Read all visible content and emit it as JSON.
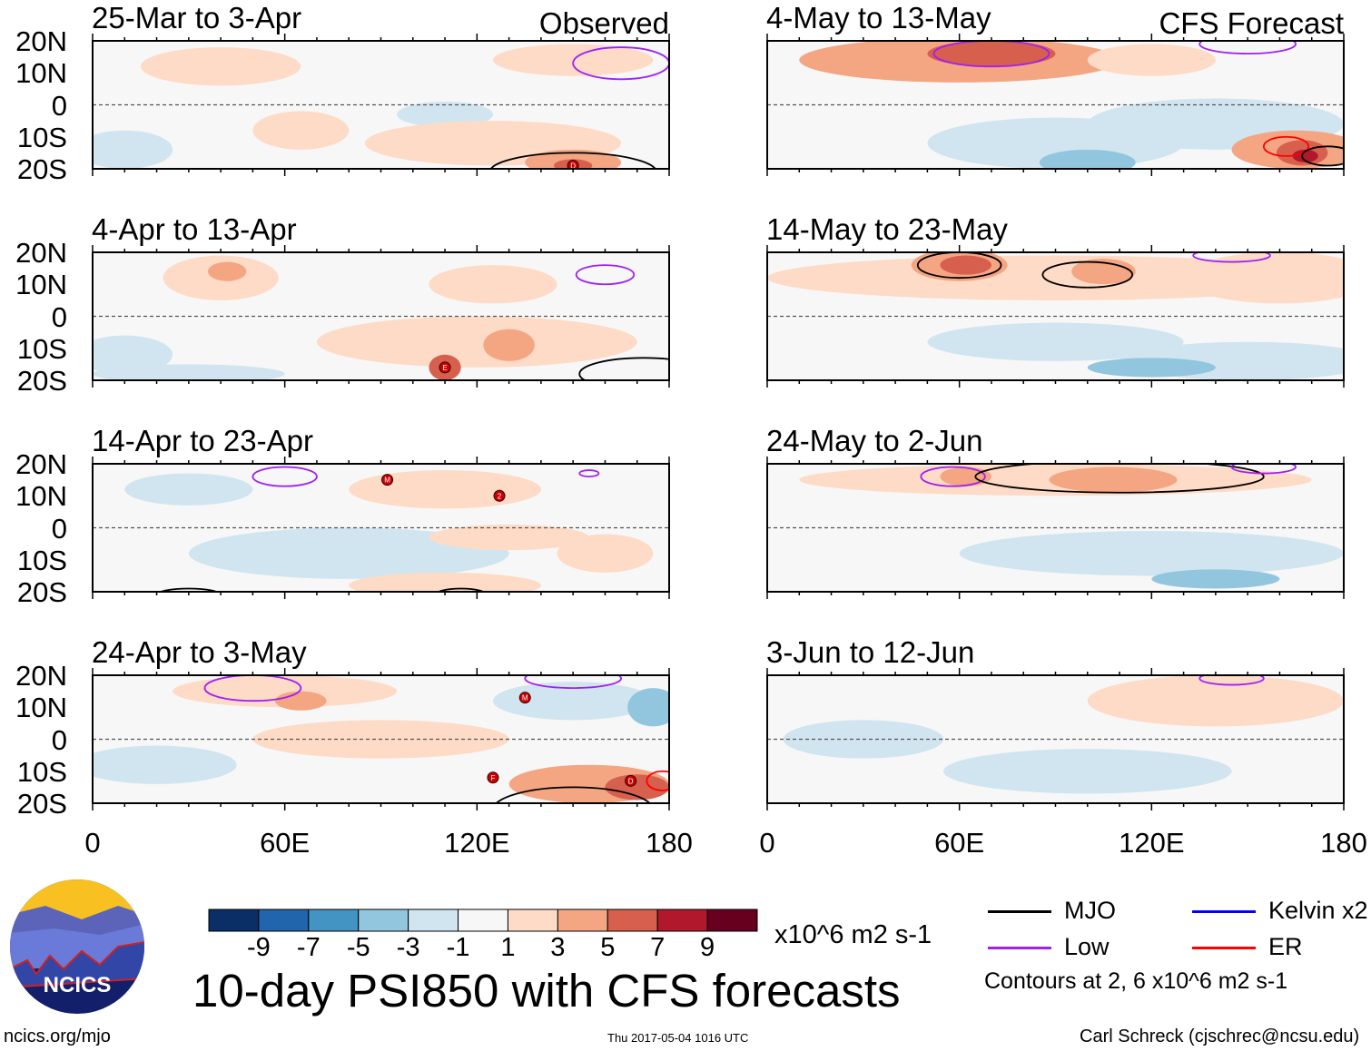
{
  "chart_data": {
    "type": "heatmap",
    "title": "10-day PSI850 with CFS forecasts",
    "units": "x10^6 m2 s-1",
    "column_labels": [
      "Observed",
      "CFS Forecast"
    ],
    "ylim": [
      -20,
      20
    ],
    "xlim": [
      0,
      180
    ],
    "y_ticks": [
      "20N",
      "10N",
      "0",
      "10S",
      "20S"
    ],
    "x_ticks": [
      "0",
      "60E",
      "120E",
      "180"
    ],
    "colorbar": {
      "ticks": [
        "-9",
        "-7",
        "-5",
        "-3",
        "-1",
        "1",
        "3",
        "5",
        "7",
        "9"
      ],
      "colors": [
        "#0a2f66",
        "#2166ac",
        "#4393c3",
        "#92c5de",
        "#d1e5f0",
        "#f7f7f7",
        "#fddbc7",
        "#f4a582",
        "#d6604d",
        "#b2182b",
        "#67001f"
      ]
    },
    "contour_note": "Contours at 2, 6 x10^6 m2 s-1",
    "legend": [
      {
        "label": "MJO",
        "color": "#000000"
      },
      {
        "label": "Kelvin x2",
        "color": "#0000ff"
      },
      {
        "label": "Low",
        "color": "#a020f0"
      },
      {
        "label": "ER",
        "color": "#ff0000"
      }
    ],
    "panels": [
      {
        "title": "25-Mar to 3-Apr",
        "tag": "Observed",
        "anomalies": [
          [
            150,
            14,
            25,
            5,
            2
          ],
          [
            40,
            12,
            25,
            6,
            2
          ],
          [
            110,
            -3,
            15,
            4,
            -2
          ],
          [
            10,
            -14,
            15,
            6,
            -2
          ],
          [
            125,
            -12,
            40,
            7,
            2
          ],
          [
            150,
            -18,
            15,
            4,
            4
          ],
          [
            150,
            -19,
            6,
            2,
            6
          ],
          [
            65,
            -8,
            15,
            6,
            2
          ]
        ],
        "contours": [
          [
            150,
            -21,
            26,
            6,
            "MJO"
          ],
          [
            165,
            13,
            15,
            5,
            "Low"
          ]
        ],
        "storms": [
          [
            150,
            -19,
            "D"
          ]
        ]
      },
      {
        "title": "4-Apr to 13-Apr",
        "tag": "",
        "anomalies": [
          [
            40,
            12,
            18,
            7,
            2
          ],
          [
            42,
            14,
            6,
            3,
            4
          ],
          [
            125,
            10,
            20,
            6,
            2
          ],
          [
            120,
            -8,
            50,
            8,
            2
          ],
          [
            110,
            -16,
            5,
            4,
            6
          ],
          [
            130,
            -9,
            8,
            5,
            4
          ],
          [
            10,
            -12,
            15,
            6,
            -2
          ],
          [
            30,
            -18,
            30,
            3,
            -2
          ]
        ],
        "contours": [
          [
            160,
            13,
            9,
            3,
            "Low"
          ],
          [
            172,
            -18,
            20,
            5,
            "MJO"
          ]
        ],
        "storms": [
          [
            110,
            -16,
            "E"
          ]
        ]
      },
      {
        "title": "14-Apr to 23-Apr",
        "tag": "",
        "anomalies": [
          [
            30,
            12,
            20,
            5,
            -2
          ],
          [
            80,
            -8,
            50,
            8,
            -2
          ],
          [
            110,
            12,
            30,
            6,
            2
          ],
          [
            130,
            -3,
            25,
            4,
            2
          ],
          [
            160,
            -8,
            15,
            6,
            2
          ],
          [
            110,
            -18,
            30,
            4,
            2
          ]
        ],
        "contours": [
          [
            60,
            16,
            10,
            3,
            "Low"
          ],
          [
            155,
            17,
            3,
            1,
            "Low"
          ],
          [
            30,
            -21,
            10,
            2,
            "MJO"
          ],
          [
            115,
            -21,
            8,
            2,
            "MJO"
          ]
        ],
        "storms": [
          [
            92,
            15,
            "M"
          ],
          [
            127,
            10,
            "2"
          ]
        ]
      },
      {
        "title": "24-Apr to 3-May",
        "tag": "",
        "anomalies": [
          [
            60,
            15,
            35,
            5,
            2
          ],
          [
            65,
            12,
            8,
            3,
            4
          ],
          [
            150,
            12,
            25,
            6,
            -2
          ],
          [
            175,
            10,
            8,
            6,
            -4
          ],
          [
            90,
            0,
            40,
            6,
            2
          ],
          [
            155,
            -14,
            25,
            6,
            4
          ],
          [
            170,
            -15,
            10,
            4,
            6
          ],
          [
            20,
            -8,
            25,
            6,
            -2
          ]
        ],
        "contours": [
          [
            50,
            16,
            15,
            4,
            "Low"
          ],
          [
            150,
            19,
            15,
            3,
            "Low"
          ],
          [
            150,
            -22,
            25,
            7,
            "MJO"
          ],
          [
            178,
            -13,
            5,
            3,
            "ER"
          ]
        ],
        "storms": [
          [
            135,
            13,
            "M"
          ],
          [
            125,
            -12,
            "F"
          ],
          [
            168,
            -13,
            "D"
          ]
        ]
      },
      {
        "title": "4-May to 13-May",
        "tag": "CFS Forecast",
        "anomalies": [
          [
            60,
            14,
            50,
            7,
            4
          ],
          [
            70,
            16,
            20,
            4,
            6
          ],
          [
            120,
            14,
            20,
            5,
            2
          ],
          [
            140,
            -6,
            40,
            8,
            -2
          ],
          [
            90,
            -12,
            40,
            8,
            -3
          ],
          [
            100,
            -18,
            15,
            4,
            -5
          ],
          [
            165,
            -14,
            20,
            6,
            4
          ],
          [
            167,
            -15,
            8,
            4,
            6
          ],
          [
            168,
            -16,
            4,
            2,
            8
          ]
        ],
        "contours": [
          [
            70,
            16,
            18,
            4,
            "Low"
          ],
          [
            150,
            19,
            15,
            3,
            "Low"
          ],
          [
            162,
            -13,
            7,
            3,
            "ER"
          ],
          [
            175,
            -16,
            8,
            3,
            "MJO"
          ]
        ],
        "storms": []
      },
      {
        "title": "14-May to 23-May",
        "tag": "",
        "anomalies": [
          [
            90,
            12,
            90,
            7,
            2
          ],
          [
            60,
            16,
            15,
            5,
            4
          ],
          [
            62,
            16,
            8,
            3,
            6
          ],
          [
            105,
            14,
            10,
            4,
            4
          ],
          [
            160,
            12,
            30,
            8,
            2
          ],
          [
            90,
            -8,
            40,
            6,
            -2
          ],
          [
            150,
            -14,
            40,
            6,
            -2
          ],
          [
            120,
            -16,
            20,
            3,
            -4
          ]
        ],
        "contours": [
          [
            60,
            16,
            13,
            4,
            "MJO"
          ],
          [
            100,
            13,
            14,
            4,
            "MJO"
          ],
          [
            145,
            19,
            12,
            2,
            "Low"
          ]
        ],
        "storms": []
      },
      {
        "title": "24-May to 2-Jun",
        "tag": "",
        "anomalies": [
          [
            90,
            15,
            80,
            5,
            2
          ],
          [
            62,
            16,
            8,
            3,
            4
          ],
          [
            108,
            15,
            20,
            4,
            4
          ],
          [
            120,
            -8,
            60,
            7,
            -2
          ],
          [
            140,
            -16,
            20,
            3,
            -4
          ]
        ],
        "contours": [
          [
            58,
            16,
            10,
            3,
            "Low"
          ],
          [
            110,
            16,
            45,
            5,
            "MJO"
          ],
          [
            155,
            19,
            10,
            2,
            "Low"
          ]
        ],
        "storms": []
      },
      {
        "title": "3-Jun to 12-Jun",
        "tag": "",
        "anomalies": [
          [
            140,
            12,
            40,
            8,
            2
          ],
          [
            100,
            -10,
            45,
            7,
            -2
          ],
          [
            30,
            0,
            25,
            6,
            -2
          ]
        ],
        "contours": [
          [
            145,
            19,
            10,
            2,
            "Low"
          ]
        ],
        "storms": []
      }
    ]
  },
  "footer": {
    "logo_text": "NCICS",
    "url": "ncics.org/mjo",
    "timestamp": "Thu 2017-05-04 1016 UTC",
    "author": "Carl Schreck (cjschrec@ncsu.edu)"
  }
}
